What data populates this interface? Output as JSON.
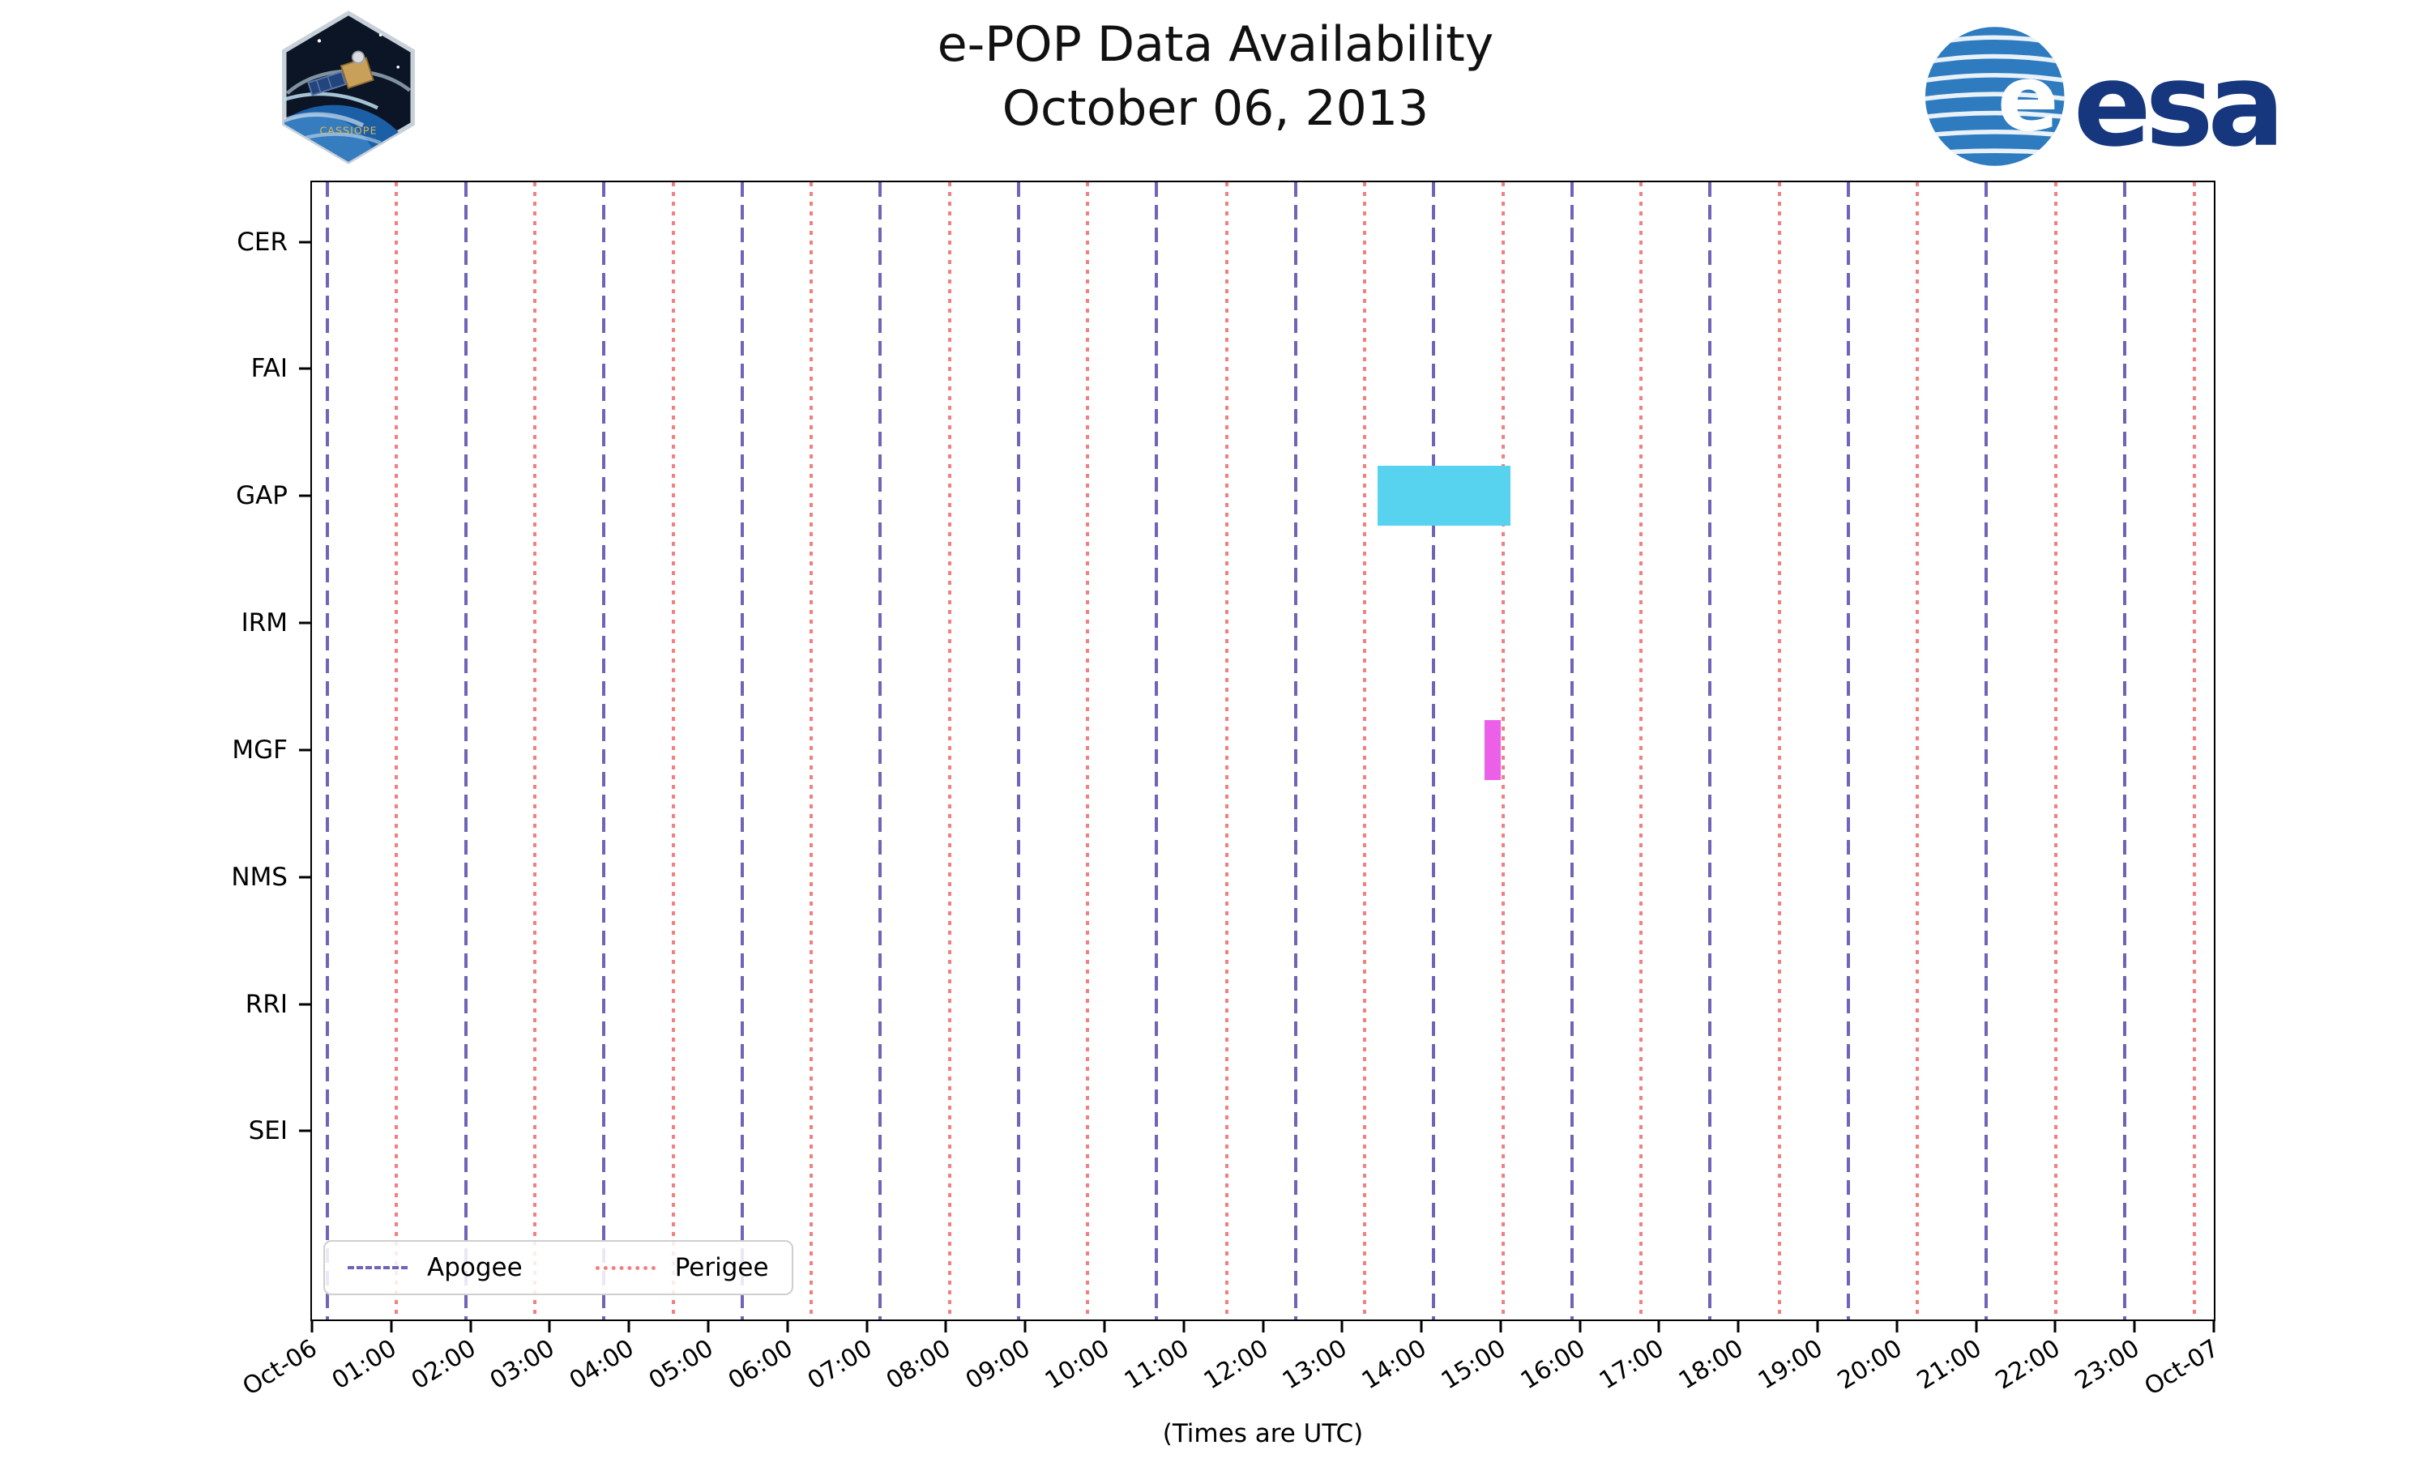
{
  "chart_data": {
    "type": "availability-timeline",
    "title": "e-POP Data Availability",
    "subtitle": "October 06, 2013",
    "x_axis": {
      "label": "(Times are UTC)",
      "range_hours": [
        0,
        24
      ],
      "tick_labels": [
        "Oct-06",
        "01:00",
        "02:00",
        "03:00",
        "04:00",
        "05:00",
        "06:00",
        "07:00",
        "08:00",
        "09:00",
        "10:00",
        "11:00",
        "12:00",
        "13:00",
        "14:00",
        "15:00",
        "16:00",
        "17:00",
        "18:00",
        "19:00",
        "20:00",
        "21:00",
        "22:00",
        "23:00",
        "Oct-07"
      ]
    },
    "y_axis": {
      "instruments": [
        "CER",
        "FAI",
        "GAP",
        "IRM",
        "MGF",
        "NMS",
        "RRI",
        "SEI"
      ]
    },
    "availability_bars": [
      {
        "instrument": "GAP",
        "start_hour": 13.45,
        "end_hour": 15.12,
        "color": "#57d3f0"
      },
      {
        "instrument": "MGF",
        "start_hour": 14.8,
        "end_hour": 15.0,
        "color": "#ec5fe8"
      }
    ],
    "orbit_markers": {
      "apogee": {
        "style": "dashed",
        "color": "#6f64b8",
        "hours": [
          0.19,
          1.94,
          3.68,
          5.43,
          7.17,
          8.92,
          10.66,
          12.41,
          14.15,
          15.9,
          17.64,
          19.39,
          21.13,
          22.88
        ]
      },
      "perigee": {
        "style": "dotted",
        "color": "#f28080",
        "hours": [
          1.06,
          2.81,
          4.56,
          6.3,
          8.05,
          9.79,
          11.54,
          13.28,
          15.03,
          16.77,
          18.52,
          20.26,
          22.01,
          23.75
        ]
      }
    },
    "legend": [
      {
        "label": "Apogee",
        "style": "dashed",
        "color": "#6f64b8"
      },
      {
        "label": "Perigee",
        "style": "dotted",
        "color": "#f28080"
      }
    ]
  },
  "branding": {
    "esa_wordmark": "esa",
    "esa_globe_letter": "e",
    "cassiope_label": "CASSIOPE"
  }
}
